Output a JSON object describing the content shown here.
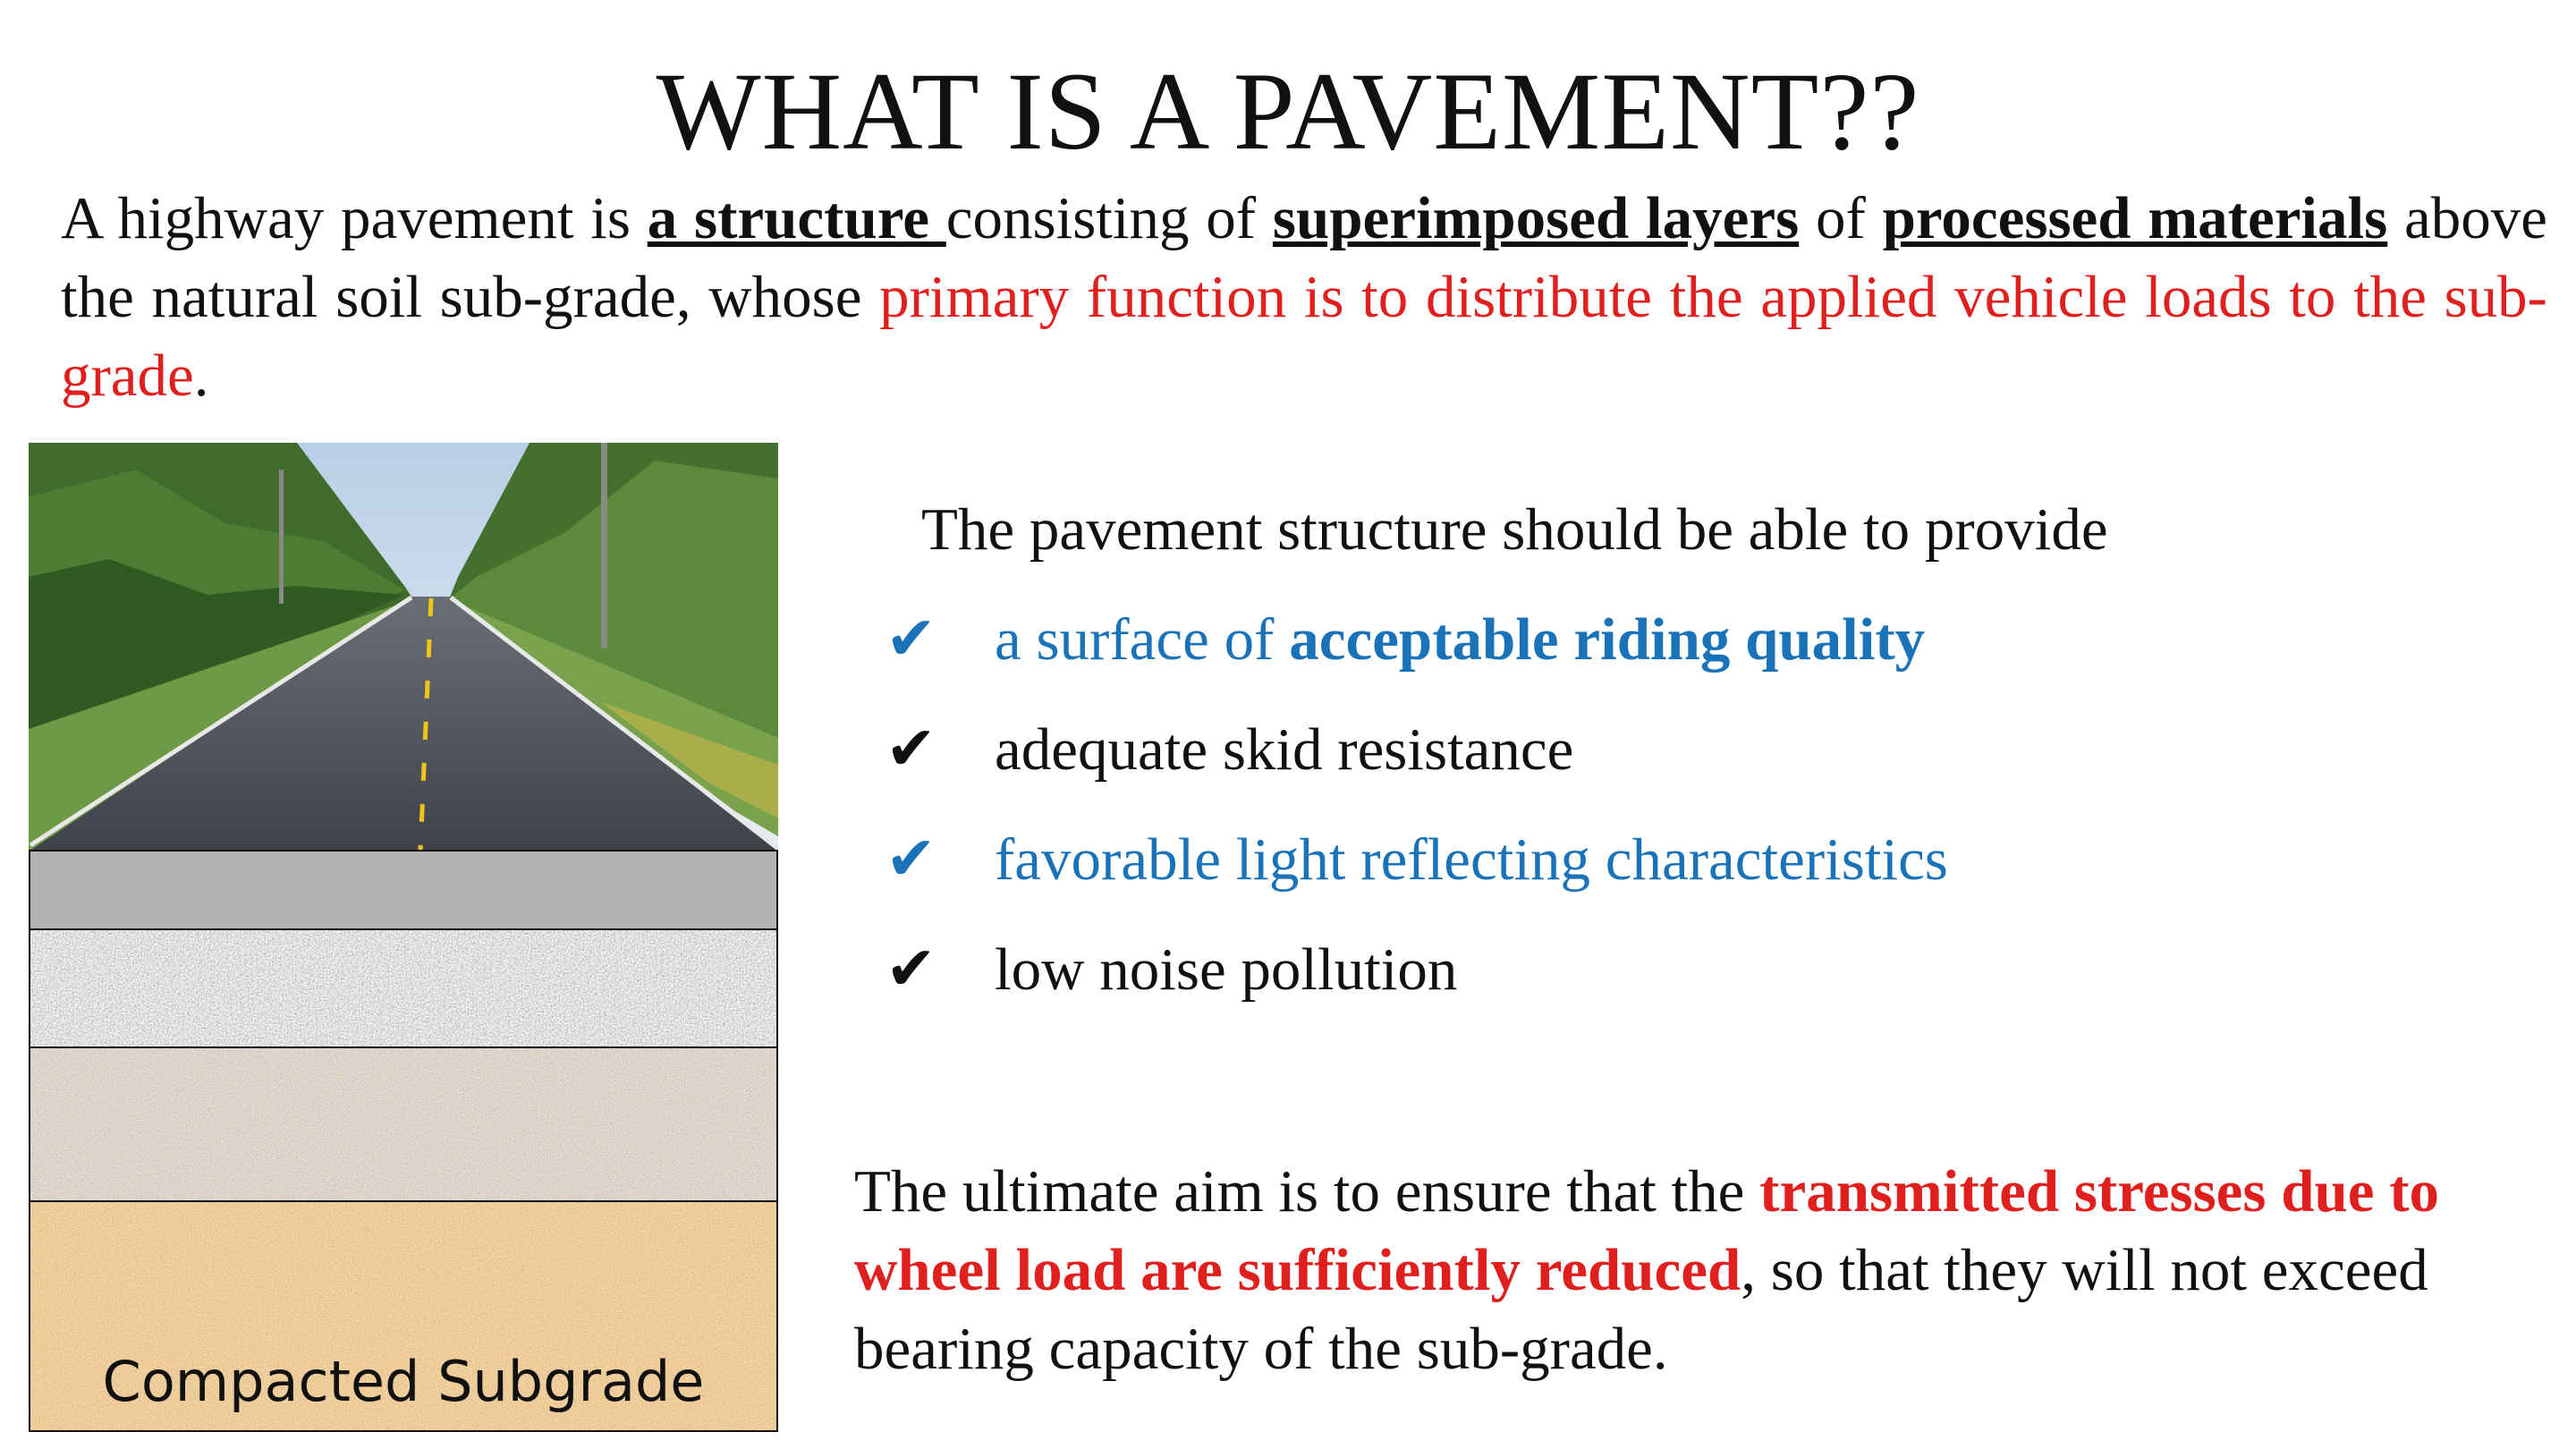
{
  "title": "WHAT IS A PAVEMENT??",
  "intro": {
    "t1": "A highway pavement is ",
    "u1": "a structure ",
    "t2": "consisting of ",
    "u2": "superimposed layers",
    "t3": " of ",
    "u3": "processed materials",
    "t4": " above the natural soil sub-grade, whose ",
    "red": "primary function is to distribute the applied vehicle loads to the sub-grade",
    "t5": "."
  },
  "figure": {
    "subgrade_label": "Compacted Subgrade"
  },
  "provide_text": "The pavement structure should be able to provide",
  "checks": [
    {
      "prefix": "a surface of ",
      "bold": "acceptable riding quality",
      "color": "#1a73b8"
    },
    {
      "prefix": "adequate skid resistance",
      "bold": "",
      "color": "#111111"
    },
    {
      "prefix": "favorable light reflecting characteristics",
      "bold": "",
      "color": "#1a73b8"
    },
    {
      "prefix": "low noise pollution",
      "bold": "",
      "color": "#111111"
    }
  ],
  "check_mark": "✔",
  "aim": {
    "t1": "The ultimate aim is to ensure that the ",
    "red": "transmitted stresses due to wheel load are sufficiently reduced",
    "t2": ", so that they will not exceed bearing capacity of the sub-grade."
  },
  "colors": {
    "red": "#e0201f",
    "blue": "#1a73b8"
  }
}
